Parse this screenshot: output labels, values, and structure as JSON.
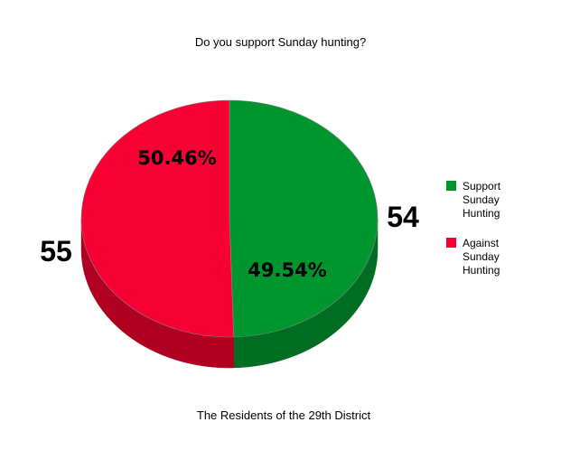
{
  "chart_data": {
    "type": "pie",
    "title": "Do you support Sunday hunting?",
    "xlabel": "The Residents of the 29th District",
    "slices": [
      {
        "label": "Support Sunday Hunting",
        "value": 54,
        "percent": "49.54%",
        "color": "#00962f",
        "side_color": "#006e22"
      },
      {
        "label": "Against Sunday Hunting",
        "value": 55,
        "percent": "50.46%",
        "color": "#f70033",
        "side_color": "#b00022"
      }
    ],
    "legend_position": "right",
    "three_d": true
  }
}
